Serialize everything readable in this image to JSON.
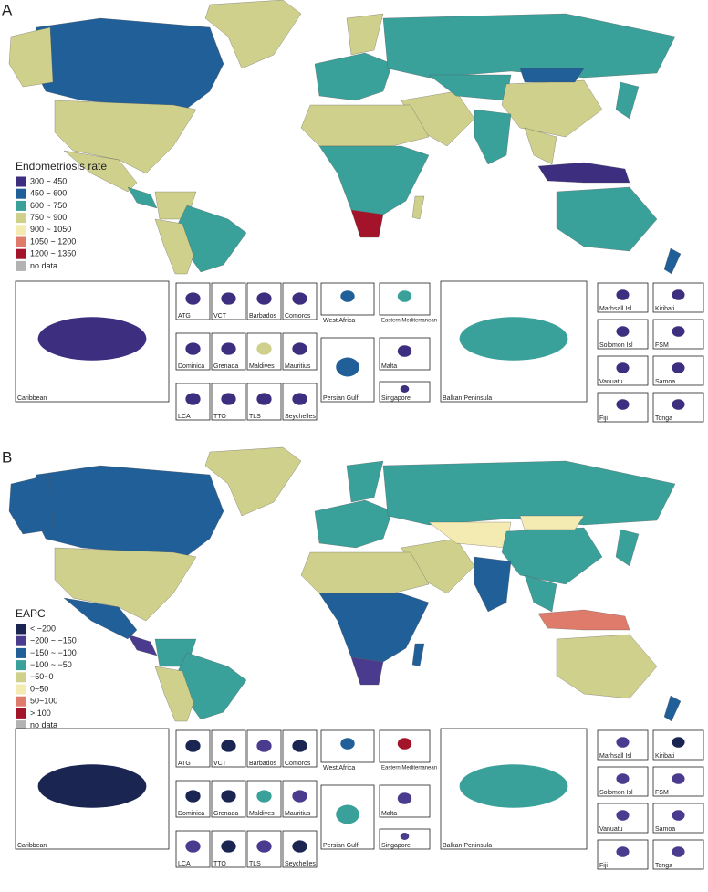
{
  "panels": [
    {
      "label": "A",
      "legend": {
        "title": "Endometriosis rate",
        "items": [
          {
            "label": "300 ~ 450",
            "color": "#3d2e7f"
          },
          {
            "label": "450 ~ 600",
            "color": "#215f99"
          },
          {
            "label": "600 ~ 750",
            "color": "#3aa09a"
          },
          {
            "label": "750 ~ 900",
            "color": "#cfd08c"
          },
          {
            "label": "900 ~ 1050",
            "color": "#f4ebb3"
          },
          {
            "label": "1050 ~ 1200",
            "color": "#de7b6a"
          },
          {
            "label": "1200 ~ 1350",
            "color": "#a3142b"
          },
          {
            "label": "no data",
            "color": "#b3b3b3"
          }
        ]
      },
      "insets": [
        "Caribbean",
        "ATG",
        "VCT",
        "Barbados",
        "Comoros",
        "Dominica",
        "Grenada",
        "Maldives",
        "Mauritius",
        "LCA",
        "TTO",
        "TLS",
        "Seychelles",
        "West Africa",
        "Eastern Mediterranean",
        "Persian Gulf",
        "Malta",
        "Singapore",
        "Balkan Peninsula",
        "Marhsall Isl",
        "Kiribati",
        "Solomon Isl",
        "FSM",
        "Vanuatu",
        "Samoa",
        "Fiji",
        "Tonga"
      ]
    },
    {
      "label": "B",
      "legend": {
        "title": "EAPC",
        "items": [
          {
            "label": "< −200",
            "color": "#1b2552"
          },
          {
            "label": "−200 ~ −150",
            "color": "#4a3b8e"
          },
          {
            "label": "−150 ~ −100",
            "color": "#215f99"
          },
          {
            "label": "−100 ~ −50",
            "color": "#3aa09a"
          },
          {
            "label": "−50~0",
            "color": "#cfd08c"
          },
          {
            "label": "0~50",
            "color": "#f4ebb3"
          },
          {
            "label": "50~100",
            "color": "#de7b6a"
          },
          {
            "label": "> 100",
            "color": "#a3142b"
          },
          {
            "label": "no data",
            "color": "#b3b3b3"
          }
        ]
      },
      "insets": [
        "Caribbean",
        "ATG",
        "VCT",
        "Barbados",
        "Comoros",
        "Dominica",
        "Grenada",
        "Maldives",
        "Mauritius",
        "LCA",
        "TTO",
        "TLS",
        "Seychelles",
        "West Africa",
        "Eastern Mediterranean",
        "Persian Gulf",
        "Malta",
        "Singapore",
        "Balkan Peninsula",
        "Marhsall Isl",
        "Kiribati",
        "Solomon Isl",
        "FSM",
        "Vanuatu",
        "Samoa",
        "Fiji",
        "Tonga"
      ]
    }
  ]
}
